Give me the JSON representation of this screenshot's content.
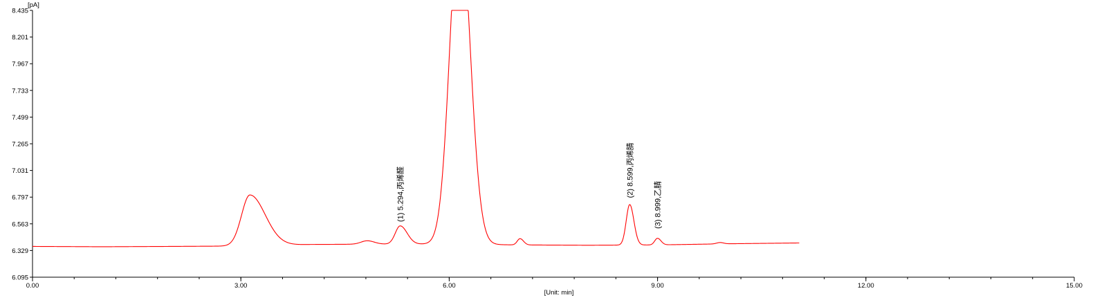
{
  "chart_data": {
    "type": "line",
    "title": "",
    "xlabel": "[Unit: min]",
    "ylabel": "[pA]",
    "xlim": [
      0,
      15
    ],
    "ylim": [
      6.095,
      8.435
    ],
    "x_ticks": [
      0,
      3,
      6,
      9,
      12,
      15
    ],
    "x_tick_labels": [
      "0.00",
      "3.00",
      "6.00",
      "9.00",
      "12.00",
      "15.00"
    ],
    "y_ticks": [
      6.095,
      6.329,
      6.563,
      6.797,
      7.031,
      7.265,
      7.499,
      7.733,
      7.967,
      8.201,
      8.435
    ],
    "y_tick_labels": [
      "6.095",
      "6.329",
      "6.563",
      "6.797",
      "7.031",
      "7.265",
      "7.499",
      "7.733",
      "7.967",
      "8.201",
      "8.435"
    ],
    "grid": false,
    "line_color": "#ff0000",
    "series": [
      {
        "baseline": [
          [
            0.0,
            6.365
          ],
          [
            1.0,
            6.362
          ],
          [
            2.0,
            6.365
          ],
          [
            2.9,
            6.368
          ],
          [
            4.0,
            6.382
          ],
          [
            5.0,
            6.385
          ],
          [
            6.0,
            6.385
          ],
          [
            7.0,
            6.378
          ],
          [
            8.0,
            6.375
          ],
          [
            9.0,
            6.378
          ],
          [
            10.0,
            6.388
          ],
          [
            11.0,
            6.395
          ]
        ],
        "clip_max": 8.435,
        "x_end": 11.04,
        "peaks": [
          {
            "rt": 3.13,
            "height": 0.445,
            "w_left": 0.12,
            "w_right": 0.22
          },
          {
            "rt": 4.82,
            "height": 0.03,
            "w_left": 0.09,
            "w_right": 0.1
          },
          {
            "rt": 5.294,
            "height": 0.16,
            "w_left": 0.07,
            "w_right": 0.1
          },
          {
            "rt": 6.15,
            "height": 2.9,
            "w_left": 0.14,
            "w_right": 0.15
          },
          {
            "rt": 7.02,
            "height": 0.055,
            "w_left": 0.04,
            "w_right": 0.05
          },
          {
            "rt": 8.599,
            "height": 0.355,
            "w_left": 0.05,
            "w_right": 0.06
          },
          {
            "rt": 8.999,
            "height": 0.058,
            "w_left": 0.04,
            "w_right": 0.05
          },
          {
            "rt": 9.9,
            "height": 0.012,
            "w_left": 0.05,
            "w_right": 0.05
          }
        ]
      }
    ],
    "annotations": [
      {
        "text": "(1) 5.294,丙烯醛",
        "x": 5.294,
        "y": 6.58
      },
      {
        "text": "(2) 8.599,丙烯腈",
        "x": 8.599,
        "y": 6.79
      },
      {
        "text": "(3) 8.999,乙腈",
        "x": 8.999,
        "y": 6.52
      }
    ]
  }
}
